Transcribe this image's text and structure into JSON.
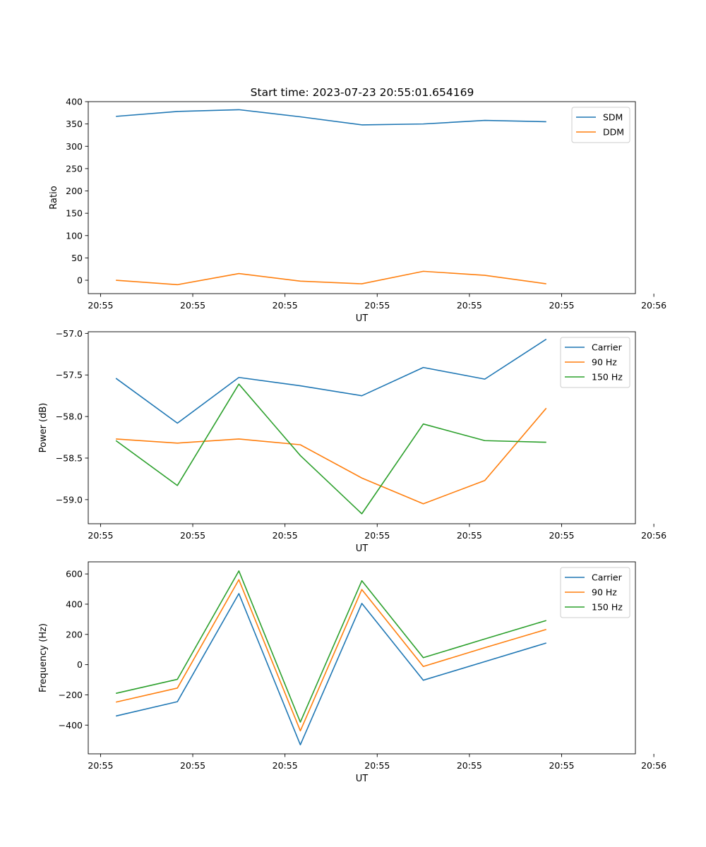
{
  "figure_title": "Start time: 2023-07-23 20:55:01.654169",
  "colors": {
    "c0": "#1f77b4",
    "c1": "#ff7f0e",
    "c2": "#2ca02c",
    "axis": "#000000",
    "background": "#ffffff"
  },
  "chart_data": [
    {
      "type": "line",
      "title": "Start time: 2023-07-23 20:55:01.654169",
      "xlabel": "UT",
      "ylabel": "Ratio",
      "x": [
        1,
        2,
        3,
        4,
        5,
        6,
        7,
        8
      ],
      "xlim": [
        0.55,
        9.45
      ],
      "xticks": [
        0.75,
        2.25,
        3.75,
        5.25,
        6.75,
        8.25,
        9.75
      ],
      "xtick_labels": [
        "20:55",
        "20:55",
        "20:55",
        "20:55",
        "20:55",
        "20:55",
        "20:56"
      ],
      "ylim": [
        -30,
        400
      ],
      "yticks": [
        0,
        50,
        100,
        150,
        200,
        250,
        300,
        350,
        400
      ],
      "ytick_labels": [
        "0",
        "50",
        "100",
        "150",
        "200",
        "250",
        "300",
        "350",
        "400"
      ],
      "legend_position": "top-right",
      "series": [
        {
          "name": "SDM",
          "color": "#1f77b4",
          "values": [
            367,
            378,
            382,
            366,
            348,
            350,
            358,
            355
          ]
        },
        {
          "name": "DDM",
          "color": "#ff7f0e",
          "values": [
            0,
            -10,
            15,
            -2,
            -8,
            20,
            11,
            -8
          ]
        }
      ]
    },
    {
      "type": "line",
      "title": "",
      "xlabel": "UT",
      "ylabel": "Power (dB)",
      "x": [
        1,
        2,
        3,
        4,
        5,
        6,
        7,
        8
      ],
      "xlim": [
        0.55,
        9.45
      ],
      "xticks": [
        0.75,
        2.25,
        3.75,
        5.25,
        6.75,
        8.25,
        9.75
      ],
      "xtick_labels": [
        "20:55",
        "20:55",
        "20:55",
        "20:55",
        "20:55",
        "20:55",
        "20:56"
      ],
      "ylim": [
        -59.29,
        -56.98
      ],
      "yticks": [
        -59.0,
        -58.5,
        -58.0,
        -57.5,
        -57.0
      ],
      "ytick_labels": [
        "−59.0",
        "−58.5",
        "−58.0",
        "−57.5",
        "−57.0"
      ],
      "legend_position": "top-right",
      "series": [
        {
          "name": "Carrier",
          "color": "#1f77b4",
          "values": [
            -57.54,
            -58.08,
            -57.53,
            -57.63,
            -57.75,
            -57.41,
            -57.55,
            -57.07
          ]
        },
        {
          "name": "90 Hz",
          "color": "#ff7f0e",
          "values": [
            -58.27,
            -58.32,
            -58.27,
            -58.34,
            -58.74,
            -59.05,
            -58.77,
            -57.9
          ]
        },
        {
          "name": "150 Hz",
          "color": "#2ca02c",
          "values": [
            -58.29,
            -58.83,
            -57.61,
            -58.47,
            -59.17,
            -58.09,
            -58.29,
            -58.31
          ]
        }
      ]
    },
    {
      "type": "line",
      "title": "",
      "xlabel": "UT",
      "ylabel": "Frequency (Hz)",
      "x": [
        1,
        2,
        3,
        4,
        5,
        6,
        7,
        8
      ],
      "xlim": [
        0.55,
        9.45
      ],
      "xticks": [
        0.75,
        2.25,
        3.75,
        5.25,
        6.75,
        8.25,
        9.75
      ],
      "xtick_labels": [
        "20:55",
        "20:55",
        "20:55",
        "20:55",
        "20:55",
        "20:55",
        "20:56"
      ],
      "ylim": [
        -590,
        680
      ],
      "yticks": [
        -400,
        -200,
        0,
        200,
        400,
        600
      ],
      "ytick_labels": [
        "−400",
        "−200",
        "0",
        "200",
        "400",
        "600"
      ],
      "legend_position": "top-right",
      "series": [
        {
          "name": "Carrier",
          "color": "#1f77b4",
          "values": [
            -340,
            -245,
            470,
            -530,
            405,
            -103,
            20,
            143
          ]
        },
        {
          "name": "90 Hz",
          "color": "#ff7f0e",
          "values": [
            -248,
            -155,
            562,
            -438,
            497,
            -12,
            112,
            233
          ]
        },
        {
          "name": "150 Hz",
          "color": "#2ca02c",
          "values": [
            -190,
            -97,
            620,
            -380,
            555,
            46,
            170,
            292
          ]
        }
      ]
    }
  ]
}
